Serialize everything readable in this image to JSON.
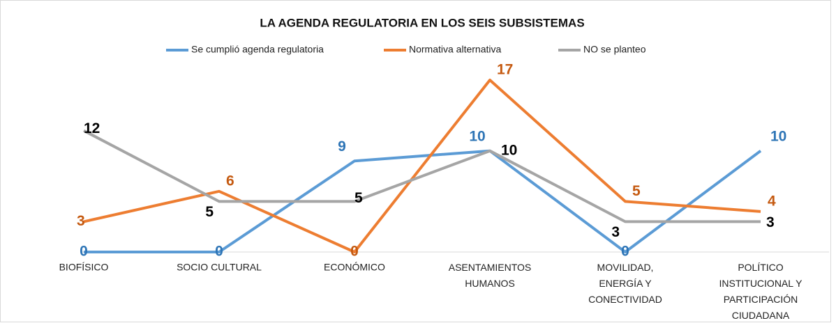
{
  "chart_data": {
    "type": "line",
    "title": "LA AGENDA REGULATORIA EN LOS SEIS SUBSISTEMAS",
    "categories": [
      "BIOFÍSICO",
      "SOCIO CULTURAL",
      "ECONÓMICO",
      "ASENTAMIENTOS HUMANOS",
      "MOVILIDAD, ENERGÍA Y CONECTIVIDAD",
      "POLÍTICO INSTITUCIONAL Y PARTICIPACIÓN CIUDADANA"
    ],
    "series": [
      {
        "name": "Se cumplió agenda regulatoria",
        "color": "#5b9bd5",
        "label_color": "#2e75b6",
        "values": [
          0,
          0,
          9,
          10,
          0,
          10
        ]
      },
      {
        "name": "Normativa alternativa",
        "color": "#ed7d31",
        "label_color": "#c55a11",
        "values": [
          3,
          6,
          0,
          17,
          5,
          4
        ]
      },
      {
        "name": "NO se planteo",
        "color": "#a5a5a5",
        "label_color": "#000000",
        "values": [
          12,
          5,
          5,
          10,
          3,
          3
        ]
      }
    ],
    "ylim": [
      0,
      17
    ],
    "legend": "top"
  }
}
